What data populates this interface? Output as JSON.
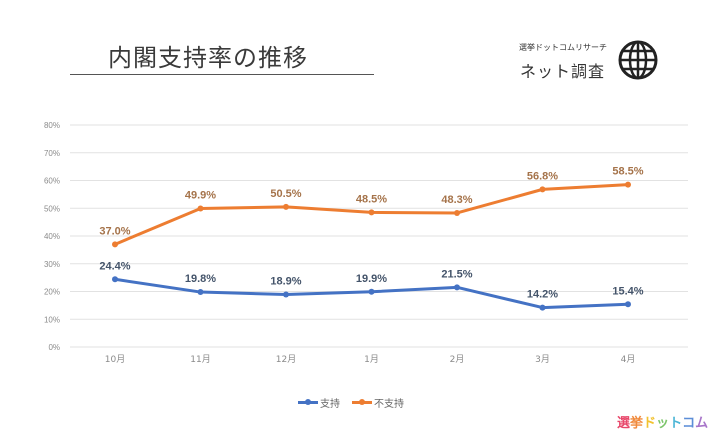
{
  "header": {
    "title": "内閣支持率の推移",
    "brand_small": "選挙ドットコムリサーチ",
    "brand_main": "ネット調査",
    "icon": "globe-icon"
  },
  "logo": {
    "chars": [
      {
        "ch": "選",
        "color": "#e8486b"
      },
      {
        "ch": "挙",
        "color": "#f08a3c"
      },
      {
        "ch": "ド",
        "color": "#f2c230"
      },
      {
        "ch": "ッ",
        "color": "#7cc56a"
      },
      {
        "ch": "ト",
        "color": "#4cb6d6"
      },
      {
        "ch": "コ",
        "color": "#5c8ed8"
      },
      {
        "ch": "ム",
        "color": "#a774c9"
      }
    ]
  },
  "chart_data": {
    "type": "line",
    "title": "内閣支持率の推移",
    "categories": [
      "10月",
      "11月",
      "12月",
      "1月",
      "2月",
      "3月",
      "4月"
    ],
    "series": [
      {
        "name": "支持",
        "color": "#4472c4",
        "label_color": "#44546a",
        "values": [
          24.4,
          19.8,
          18.9,
          19.9,
          21.5,
          14.2,
          15.4
        ],
        "labels": [
          "24.4%",
          "19.8%",
          "18.9%",
          "19.9%",
          "21.5%",
          "14.2%",
          "15.4%"
        ]
      },
      {
        "name": "不支持",
        "color": "#ed7d31",
        "label_color": "#a5734a",
        "values": [
          37.0,
          49.9,
          50.5,
          48.5,
          48.3,
          56.8,
          58.5
        ],
        "labels": [
          "37.0%",
          "49.9%",
          "50.5%",
          "48.5%",
          "48.3%",
          "56.8%",
          "58.5%"
        ]
      }
    ],
    "ylim": [
      0,
      80
    ],
    "yticks": [
      0,
      10,
      20,
      30,
      40,
      50,
      60,
      70,
      80
    ],
    "ytick_labels": [
      "0%",
      "10%",
      "20%",
      "30%",
      "40%",
      "50%",
      "60%",
      "70%",
      "80%"
    ],
    "xlabel": "",
    "ylabel": "",
    "grid": true,
    "legend_position": "bottom"
  }
}
